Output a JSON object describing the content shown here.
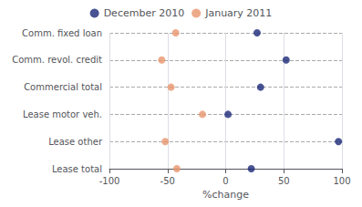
{
  "chart_data": {
    "type": "scatter",
    "orientation": "horizontal",
    "categories": [
      "Comm. fixed loan",
      "Comm. revol. credit",
      "Commercial total",
      "Lease motor veh.",
      "Lease other",
      "Lease total"
    ],
    "series": [
      {
        "name": "December 2010",
        "color": "#1a2878",
        "values": [
          27,
          52,
          30,
          2,
          97,
          22
        ]
      },
      {
        "name": "January 2011",
        "color": "#e8956d",
        "values": [
          -43,
          -55,
          -47,
          -20,
          -52,
          -42
        ]
      }
    ],
    "xlabel": "%change",
    "xlim": [
      -100,
      100
    ],
    "xticks": [
      -100,
      -50,
      0,
      50,
      100
    ],
    "grid": true,
    "legend": "top",
    "marker": "circle"
  }
}
